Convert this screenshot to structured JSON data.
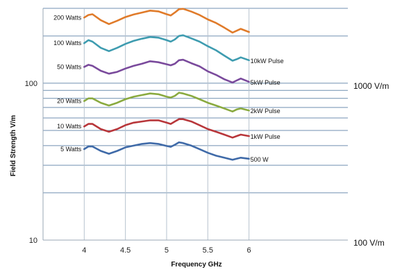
{
  "chart_data": {
    "type": "line",
    "title": "",
    "xlabel": "Frequency GHz",
    "ylabel": "Field Strength V/m",
    "x_ticks": [
      "4",
      "4.5",
      "5",
      "5.5",
      "6"
    ],
    "xlim": [
      3.5,
      7.2
    ],
    "y_scale": "log",
    "ylim": [
      10,
      300
    ],
    "y_ticks": [
      "100",
      "10"
    ],
    "right_labels": [
      "1000 V/m",
      "100 V/m"
    ],
    "grid": true,
    "x": [
      4.0,
      4.05,
      4.1,
      4.2,
      4.3,
      4.4,
      4.5,
      4.6,
      4.7,
      4.8,
      4.9,
      5.0,
      5.05,
      5.1,
      5.15,
      5.2,
      5.3,
      5.4,
      5.5,
      5.6,
      5.7,
      5.8,
      5.85,
      5.9,
      6.0
    ],
    "series": [
      {
        "name": "200 Watts",
        "end_label": "",
        "color": "#e07b2a",
        "values": [
          262,
          272,
          275,
          252,
          238,
          250,
          264,
          274,
          282,
          290,
          287,
          275,
          270,
          282,
          296,
          298,
          286,
          272,
          255,
          242,
          226,
          210,
          216,
          222,
          212
        ]
      },
      {
        "name": "100 Watts",
        "end_label": "10kW Pulse",
        "color": "#3e9cb0",
        "values": [
          180,
          188,
          184,
          168,
          160,
          168,
          178,
          186,
          192,
          197,
          195,
          188,
          184,
          190,
          200,
          202,
          193,
          184,
          172,
          162,
          150,
          139,
          142,
          146,
          140
        ]
      },
      {
        "name": "50 Watts",
        "end_label": "5kW Pulse",
        "color": "#7a4a9c",
        "values": [
          127,
          131,
          129,
          120,
          115,
          118,
          124,
          129,
          133,
          138,
          136,
          132,
          130,
          133,
          140,
          141,
          134,
          128,
          119,
          113,
          106,
          101,
          104,
          107,
          102
        ]
      },
      {
        "name": "20 Watts",
        "end_label": "2kW Pulse",
        "color": "#8aaa3f",
        "values": [
          77,
          80,
          80,
          75,
          72,
          75,
          79,
          82,
          84,
          86,
          85,
          82,
          81,
          83,
          87,
          86,
          83,
          79,
          75,
          72,
          69,
          66,
          68,
          69,
          67
        ]
      },
      {
        "name": "10 Watts",
        "end_label": "1kW Pulse",
        "color": "#b8363a",
        "values": [
          53,
          55,
          55,
          51,
          49,
          51,
          54,
          56,
          57,
          58,
          58,
          56,
          55,
          57,
          59,
          59,
          57,
          54,
          51,
          49,
          47,
          45,
          46,
          47,
          46
        ]
      },
      {
        "name": "5 Watts",
        "end_label": "500 W",
        "color": "#3f6aa8",
        "values": [
          38,
          39.5,
          39.5,
          37,
          35.5,
          37,
          39,
          40,
          41,
          41.5,
          41,
          39.8,
          39.3,
          40.5,
          42,
          41.5,
          40,
          38,
          36,
          34.5,
          33.5,
          32.5,
          33,
          33.5,
          33
        ]
      }
    ]
  }
}
